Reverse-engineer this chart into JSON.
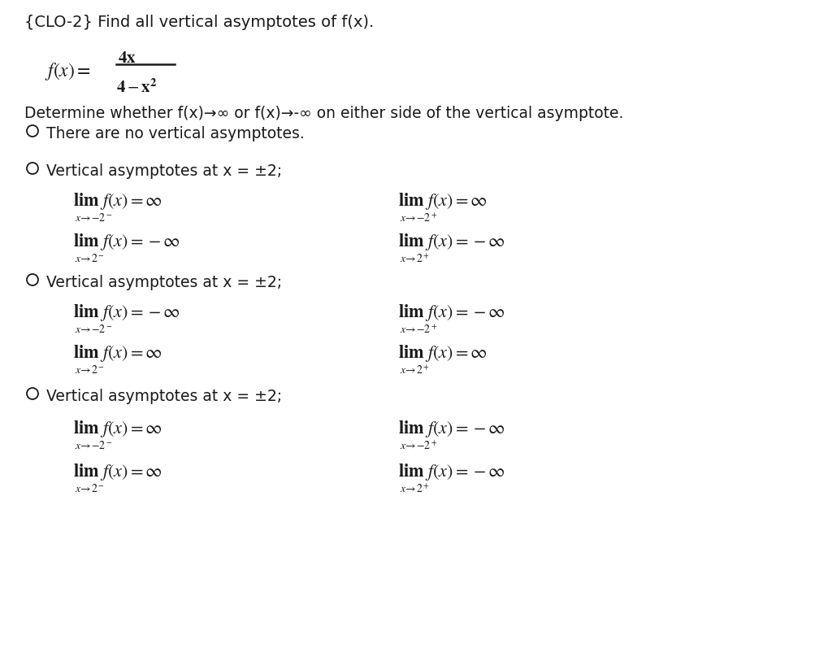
{
  "bg_color": "#ffffff",
  "text_color": "#1a1a1a",
  "title": "{CLO-2} Find all vertical asymptotes of f(x).",
  "determine": "Determine whether f(x)→∞ or f(x)→-∞ on either side of the vertical asymptote.",
  "opt1": "There are no vertical asymptotes.",
  "opt_headers": [
    "Vertical asymptotes at x = ±2;",
    "Vertical asymptotes at x = ±2;",
    "Vertical asymptotes at x = ±2;"
  ],
  "opt2_left_col": [
    [
      "lim f(x) = ∞",
      "x→-2⁻"
    ],
    [
      "lim f(x) = -∞",
      "x→2⁻"
    ]
  ],
  "opt2_right_col": [
    [
      "lim f(x) = ∞",
      "x→-2⁺"
    ],
    [
      "lim f(x) = -∞",
      "x→2⁺"
    ]
  ],
  "opt3_left_col": [
    [
      "lim f(x) = -∞",
      "x→-2⁻"
    ],
    [
      "lim f(x) = ∞",
      "x→2⁻"
    ]
  ],
  "opt3_right_col": [
    [
      "lim f(x) = -∞",
      "x→-2⁺"
    ],
    [
      "lim f(x) = ∞",
      "x→2⁺"
    ]
  ],
  "opt4_left_col": [
    [
      "lim f(x) = ∞",
      "x→-2⁻"
    ],
    [
      "lim f(x) = ∞",
      "x→2⁻"
    ]
  ],
  "opt4_right_col": [
    [
      "lim f(x) = -∞",
      "x→-2⁺"
    ],
    [
      "lim f(x) = -∞",
      "x→2⁺"
    ]
  ]
}
